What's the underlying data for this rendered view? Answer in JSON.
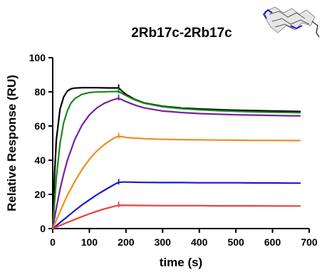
{
  "chart_data": {
    "type": "line",
    "title": "2Rb17c-2Rb17c",
    "xlabel": "time (s)",
    "ylabel": "Relative Response (RU)",
    "xlim": [
      0,
      700
    ],
    "ylim": [
      0,
      100
    ],
    "x_ticks": [
      0,
      100,
      200,
      300,
      400,
      500,
      600,
      700
    ],
    "y_ticks": [
      0,
      20,
      40,
      60,
      80,
      100
    ],
    "grid": false,
    "legend": "none",
    "x_marker": 180,
    "series": [
      {
        "color": "#000000",
        "x": [
          0,
          5,
          10,
          20,
          30,
          40,
          50,
          60,
          80,
          100,
          120,
          150,
          175,
          180,
          190,
          200,
          225,
          250,
          300,
          350,
          400,
          450,
          500,
          550,
          600,
          650,
          675
        ],
        "y": [
          0,
          32,
          52,
          70,
          77,
          80.5,
          81.8,
          82.2,
          82.4,
          82.4,
          82.4,
          82.3,
          82.3,
          82.3,
          80.3,
          78.5,
          75.5,
          73.5,
          71.6,
          70.6,
          70.0,
          69.6,
          69.2,
          69.0,
          68.8,
          68.6,
          68.5
        ]
      },
      {
        "color": "#1a8a1a",
        "x": [
          0,
          10,
          20,
          30,
          40,
          50,
          60,
          80,
          100,
          120,
          150,
          175,
          180,
          190,
          200,
          225,
          250,
          300,
          350,
          400,
          450,
          500,
          550,
          600,
          650,
          675
        ],
        "y": [
          0,
          30,
          50,
          62,
          69,
          73.5,
          76,
          78.6,
          79.6,
          79.9,
          80.1,
          80.2,
          80.2,
          79.0,
          77.8,
          75.2,
          73.3,
          71.3,
          70.2,
          69.5,
          69.0,
          68.6,
          68.3,
          68.1,
          67.9,
          67.8
        ]
      },
      {
        "color": "#7a1fa2",
        "x": [
          0,
          10,
          20,
          30,
          40,
          60,
          80,
          100,
          120,
          140,
          160,
          175,
          180,
          190,
          200,
          225,
          250,
          300,
          350,
          400,
          450,
          500,
          550,
          600,
          650,
          675
        ],
        "y": [
          0,
          12,
          23,
          32,
          40,
          52,
          60.5,
          66.5,
          70.5,
          73.2,
          75.0,
          76.0,
          76.2,
          75.3,
          74.3,
          72.2,
          70.6,
          68.8,
          67.9,
          67.3,
          66.9,
          66.6,
          66.4,
          66.2,
          66.0,
          66.0
        ]
      },
      {
        "color": "#f28c1e",
        "x": [
          0,
          20,
          40,
          60,
          80,
          100,
          120,
          140,
          160,
          175,
          180,
          190,
          200,
          250,
          300,
          350,
          400,
          450,
          500,
          550,
          600,
          650,
          675
        ],
        "y": [
          0,
          10,
          19.5,
          27.5,
          34.5,
          40.5,
          45.3,
          49.0,
          52.0,
          53.8,
          54.0,
          53.7,
          53.3,
          52.6,
          52.2,
          52.0,
          51.9,
          51.8,
          51.7,
          51.6,
          51.6,
          51.5,
          51.5
        ]
      },
      {
        "color": "#1a1ad6",
        "x": [
          0,
          20,
          40,
          60,
          80,
          100,
          120,
          140,
          160,
          175,
          180,
          190,
          200,
          250,
          300,
          350,
          400,
          450,
          500,
          550,
          600,
          650,
          675
        ],
        "y": [
          0,
          3.5,
          7,
          10.5,
          13.8,
          16.8,
          19.7,
          22.3,
          24.8,
          26.6,
          27.0,
          27.2,
          27.2,
          27.0,
          26.9,
          26.9,
          26.8,
          26.8,
          26.8,
          26.7,
          26.7,
          26.6,
          26.6
        ]
      },
      {
        "color": "#ee4040",
        "x": [
          0,
          20,
          40,
          60,
          80,
          100,
          120,
          140,
          160,
          175,
          180,
          190,
          200,
          250,
          300,
          350,
          400,
          450,
          500,
          550,
          600,
          650,
          675
        ],
        "y": [
          0,
          1.8,
          3.6,
          5.3,
          7.0,
          8.6,
          10.1,
          11.4,
          12.6,
          13.4,
          13.6,
          13.6,
          13.6,
          13.5,
          13.4,
          13.4,
          13.4,
          13.3,
          13.3,
          13.3,
          13.2,
          13.2,
          13.2
        ]
      }
    ]
  },
  "icons": {
    "structure_thumbnail": "protein-structure-icon"
  }
}
